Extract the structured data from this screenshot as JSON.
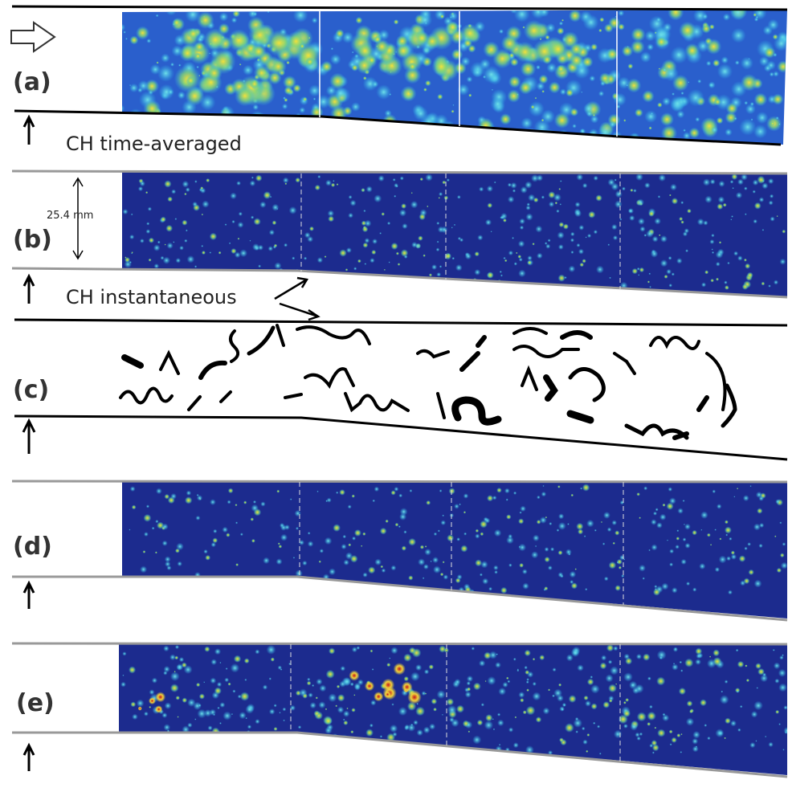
{
  "panels": [
    {
      "label": "(a)"
    },
    {
      "label": "(b)"
    },
    {
      "label": "(c)"
    },
    {
      "label": "(d)"
    },
    {
      "label": "(e)"
    }
  ],
  "annotations": {
    "time_averaged": "CH time-averaged",
    "scale": "25.4 mm",
    "instantaneous": "CH instantaneous"
  }
}
